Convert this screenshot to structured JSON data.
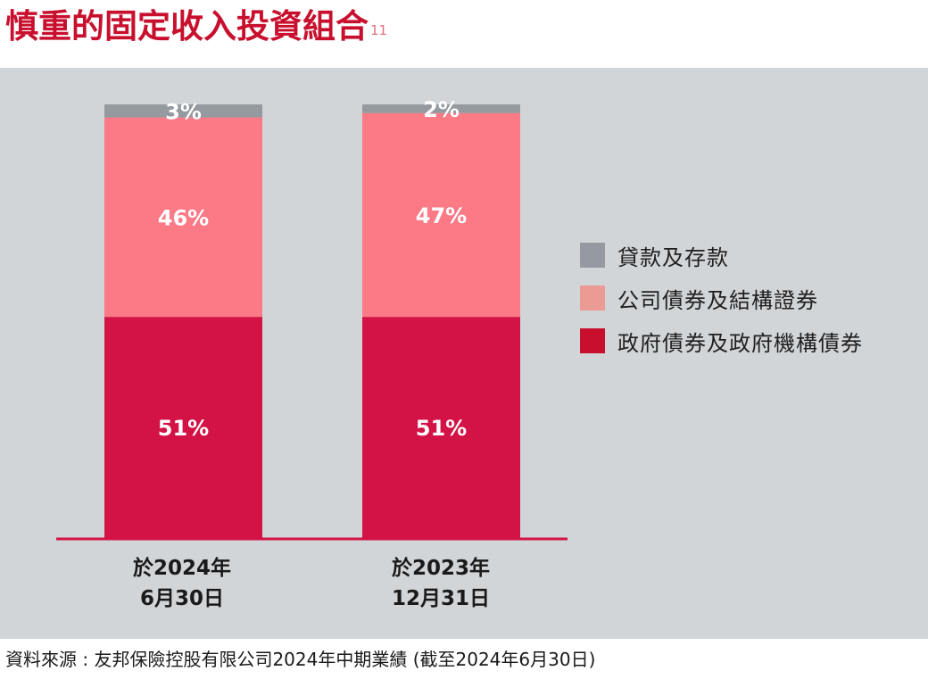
{
  "title": {
    "text": "慎重的固定收入投資組合",
    "footnote": "11"
  },
  "colors": {
    "panel_bg": "#d1d5d8",
    "loans": "#949aa0",
    "corporate": "#fc7986",
    "government": "#d31245",
    "baseline": "#d31245",
    "title": "#c8102e"
  },
  "chart_data": {
    "type": "bar",
    "stacked": true,
    "unit": "%",
    "categories": [
      {
        "line1": "於2024年",
        "line2": "6月30日"
      },
      {
        "line1": "於2023年",
        "line2": "12月31日"
      }
    ],
    "ylim": [
      0,
      100
    ],
    "series": [
      {
        "name": "政府債券及政府機構債券",
        "color": "#d31245",
        "values": [
          51,
          51
        ],
        "labels": [
          "51%",
          "51%"
        ]
      },
      {
        "name": "公司債券及結構證券",
        "color": "#fc7986",
        "values": [
          46,
          47
        ],
        "labels": [
          "46%",
          "47%"
        ]
      },
      {
        "name": "貸款及存款",
        "color": "#949aa0",
        "values": [
          3,
          2
        ],
        "labels": [
          "3%",
          "2%"
        ]
      }
    ],
    "legend": {
      "position": "right",
      "items": [
        {
          "label": "貸款及存款",
          "color": "#949aa0"
        },
        {
          "label": "公司債券及結構證券",
          "color": "#eb9a94"
        },
        {
          "label": "政府債券及政府機構債券",
          "color": "#c8102e"
        }
      ]
    }
  },
  "source": "資料來源 : 友邦保險控股有限公司2024年中期業績 (截至2024年6月30日)"
}
